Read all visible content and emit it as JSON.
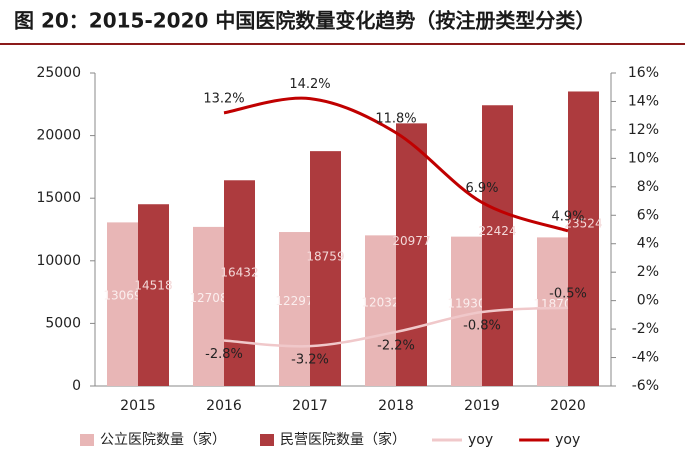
{
  "chart_data": {
    "type": "bar-line",
    "title": "图 20：2015-2020 中国医院数量变化趋势（按注册类型分类）",
    "categories": [
      "2015",
      "2016",
      "2017",
      "2018",
      "2019",
      "2020"
    ],
    "series": [
      {
        "name": "公立医院数量（家）",
        "type": "bar",
        "color": "#e8b6b6",
        "values": [
          13069,
          12708,
          12297,
          12032,
          11930,
          11870
        ]
      },
      {
        "name": "民营医院数量（家）",
        "type": "bar",
        "color": "#ad3b3e",
        "values": [
          14518,
          16432,
          18759,
          20977,
          22424,
          23524
        ]
      },
      {
        "name": "yoy",
        "type": "line",
        "axis": "y2",
        "color": "#f0c8ca",
        "values": [
          null,
          -2.8,
          -3.2,
          -2.2,
          -0.8,
          -0.5
        ],
        "value_labels": [
          null,
          "-2.8%",
          "-3.2%",
          "-2.2%",
          "-0.8%",
          "-0.5%"
        ]
      },
      {
        "name": "yoy",
        "type": "line",
        "axis": "y2",
        "color": "#c00000",
        "values": [
          null,
          13.2,
          14.2,
          11.8,
          6.9,
          4.9
        ],
        "value_labels": [
          null,
          "13.2%",
          "14.2%",
          "11.8%",
          "6.9%",
          "4.9%"
        ]
      }
    ],
    "ylim": [
      0,
      25000
    ],
    "yticks": [
      0,
      5000,
      10000,
      15000,
      20000,
      25000
    ],
    "y2lim": [
      -6,
      16
    ],
    "y2ticks": [
      {
        "value": -6,
        "label": "-6%"
      },
      {
        "value": -4,
        "label": "-4%"
      },
      {
        "value": -2,
        "label": "-2%"
      },
      {
        "value": 0,
        "label": "0%"
      },
      {
        "value": 2,
        "label": "2%"
      },
      {
        "value": 4,
        "label": "4%"
      },
      {
        "value": 6,
        "label": "6%"
      },
      {
        "value": 8,
        "label": "8%"
      },
      {
        "value": 10,
        "label": "10%"
      },
      {
        "value": 12,
        "label": "12%"
      },
      {
        "value": 14,
        "label": "14%"
      },
      {
        "value": 16,
        "label": "16%"
      }
    ],
    "legend": "bottom"
  }
}
